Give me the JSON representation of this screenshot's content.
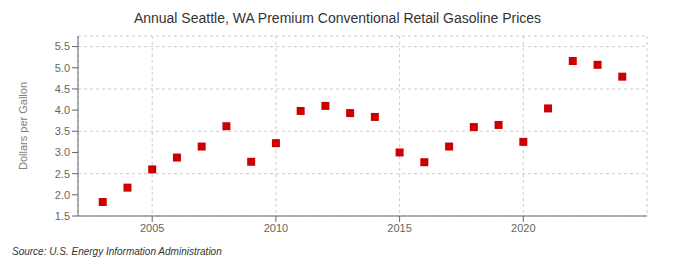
{
  "chart_data": {
    "type": "scatter",
    "title": "Annual Seattle, WA Premium Conventional Retail Gasoline Prices",
    "y_label": "Dollars per Gallon",
    "annotations": [
      "Source: U.S. Energy Information Administration"
    ],
    "x": [
      2003,
      2004,
      2005,
      2006,
      2007,
      2008,
      2009,
      2010,
      2011,
      2012,
      2013,
      2014,
      2015,
      2016,
      2017,
      2018,
      2019,
      2020,
      2021,
      2022,
      2023,
      2024
    ],
    "values": [
      1.83,
      2.17,
      2.6,
      2.88,
      3.14,
      3.62,
      2.78,
      3.22,
      3.98,
      4.1,
      3.93,
      3.84,
      3.0,
      2.77,
      3.14,
      3.6,
      3.65,
      3.25,
      4.04,
      5.16,
      5.07,
      4.79
    ],
    "color": "#cc0000",
    "marker": "square",
    "xlim": [
      2002.0,
      2025.0
    ],
    "xticks": [
      2005,
      2010,
      2015,
      2020
    ],
    "ylim": [
      1.5,
      5.75
    ],
    "yticks": [
      1.5,
      {
        "value": 2.0,
        "label": "2.0"
      },
      2.5,
      {
        "value": 3.0,
        "label": "3.0"
      },
      3.5,
      {
        "value": 4.0,
        "label": "4.0"
      },
      4.5,
      {
        "value": 5.0,
        "label": "5.0"
      },
      5.5
    ],
    "grid": true
  }
}
